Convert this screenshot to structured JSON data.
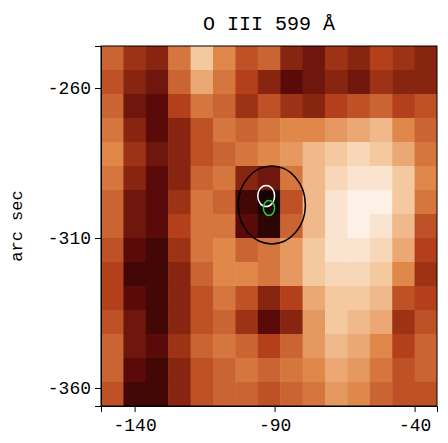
{
  "chart_data": {
    "type": "heatmap",
    "title": "O III 599 Å",
    "ylabel": "arc sec",
    "x": [
      -148,
      -140,
      -132,
      -124,
      -116,
      -108,
      -100,
      -92,
      -84,
      -76,
      -68,
      -60,
      -52,
      -44,
      -36
    ],
    "y": [
      -250,
      -258,
      -266,
      -274,
      -282,
      -290,
      -298,
      -306,
      -314,
      -322,
      -330,
      -338,
      -346,
      -354,
      -362
    ],
    "z": [
      [
        0.5,
        0.35,
        0.3,
        0.55,
        0.8,
        0.6,
        0.45,
        0.5,
        0.3,
        0.25,
        0.35,
        0.3,
        0.4,
        0.35,
        0.3
      ],
      [
        0.45,
        0.3,
        0.25,
        0.5,
        0.7,
        0.55,
        0.4,
        0.3,
        0.2,
        0.25,
        0.3,
        0.25,
        0.35,
        0.3,
        0.3
      ],
      [
        0.5,
        0.25,
        0.2,
        0.4,
        0.55,
        0.5,
        0.35,
        0.45,
        0.35,
        0.3,
        0.4,
        0.45,
        0.5,
        0.4,
        0.45
      ],
      [
        0.55,
        0.3,
        0.2,
        0.3,
        0.45,
        0.55,
        0.5,
        0.55,
        0.6,
        0.6,
        0.65,
        0.7,
        0.75,
        0.6,
        0.5
      ],
      [
        0.6,
        0.35,
        0.25,
        0.3,
        0.45,
        0.5,
        0.55,
        0.6,
        0.65,
        0.75,
        0.8,
        0.85,
        0.8,
        0.7,
        0.55
      ],
      [
        0.55,
        0.3,
        0.2,
        0.3,
        0.5,
        0.55,
        0.3,
        0.25,
        0.55,
        0.75,
        0.85,
        0.9,
        0.9,
        0.8,
        0.6
      ],
      [
        0.5,
        0.25,
        0.2,
        0.35,
        0.55,
        0.5,
        0.15,
        0.05,
        0.45,
        0.75,
        0.9,
        0.95,
        0.95,
        0.8,
        0.55
      ],
      [
        0.5,
        0.25,
        0.2,
        0.4,
        0.55,
        0.55,
        0.2,
        0.1,
        0.5,
        0.75,
        0.9,
        0.95,
        0.9,
        0.75,
        0.45
      ],
      [
        0.45,
        0.2,
        0.15,
        0.35,
        0.55,
        0.6,
        0.5,
        0.55,
        0.65,
        0.8,
        0.9,
        0.9,
        0.85,
        0.7,
        0.4
      ],
      [
        0.4,
        0.15,
        0.15,
        0.3,
        0.5,
        0.6,
        0.6,
        0.55,
        0.65,
        0.8,
        0.85,
        0.85,
        0.8,
        0.6,
        0.35
      ],
      [
        0.4,
        0.2,
        0.15,
        0.3,
        0.45,
        0.55,
        0.45,
        0.3,
        0.4,
        0.7,
        0.8,
        0.8,
        0.75,
        0.45,
        0.4
      ],
      [
        0.45,
        0.25,
        0.15,
        0.3,
        0.45,
        0.5,
        0.35,
        0.2,
        0.3,
        0.65,
        0.8,
        0.75,
        0.7,
        0.35,
        0.45
      ],
      [
        0.5,
        0.25,
        0.2,
        0.35,
        0.5,
        0.55,
        0.5,
        0.4,
        0.5,
        0.65,
        0.75,
        0.7,
        0.6,
        0.4,
        0.5
      ],
      [
        0.5,
        0.2,
        0.15,
        0.3,
        0.45,
        0.5,
        0.55,
        0.5,
        0.55,
        0.6,
        0.7,
        0.65,
        0.55,
        0.45,
        0.5
      ],
      [
        0.45,
        0.15,
        0.15,
        0.3,
        0.45,
        0.5,
        0.5,
        0.45,
        0.5,
        0.55,
        0.65,
        0.6,
        0.5,
        0.45,
        0.45
      ]
    ],
    "zlim": [
      0,
      1
    ],
    "colors": [
      "#000000",
      "#5a0a08",
      "#b3401a",
      "#e0884a",
      "#f5c9a0",
      "#ffffff"
    ],
    "contours": [
      {
        "color": "#000000",
        "cx": -91,
        "cy": -299,
        "rx": 12,
        "ry": 13
      },
      {
        "color": "#ffffff",
        "cx": -93,
        "cy": -296,
        "rx": 3,
        "ry": 3.5
      },
      {
        "color": "#22cc44",
        "cx": -92,
        "cy": -300,
        "rx": 2,
        "ry": 2.5
      }
    ],
    "xlim": [
      -152,
      -32
    ],
    "ylim": [
      -366,
      -246
    ],
    "xticks": [
      -140,
      -90,
      -40
    ],
    "yticks": [
      -260,
      -310,
      -360
    ]
  }
}
